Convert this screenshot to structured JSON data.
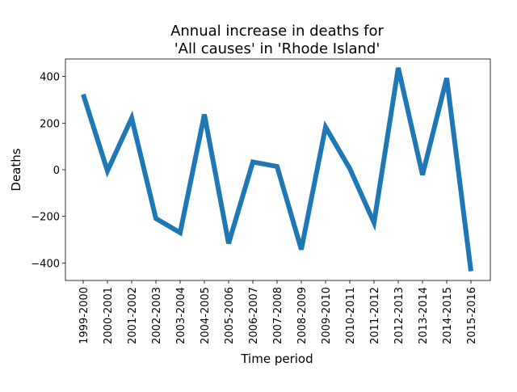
{
  "chart_data": {
    "type": "line",
    "title": "Annual increase in deaths for\n'All causes' in 'Rhode Island'",
    "xlabel": "Time period",
    "ylabel": "Deaths",
    "categories": [
      "1999-2000",
      "2000-2001",
      "2001-2002",
      "2002-2003",
      "2003-2004",
      "2004-2005",
      "2005-2006",
      "2006-2007",
      "2007-2008",
      "2008-2009",
      "2009-2010",
      "2010-2011",
      "2011-2012",
      "2012-2013",
      "2013-2014",
      "2014-2015",
      "2015-2016"
    ],
    "series": [
      {
        "values": [
          323,
          -5,
          222,
          -209,
          -270,
          237,
          -316,
          33,
          14,
          -342,
          183,
          5,
          -227,
          437,
          -22,
          393,
          -435
        ],
        "color": "#1f77b4"
      }
    ],
    "ylim": [
      -475,
      475
    ],
    "yticks": [
      -400,
      -200,
      0,
      200,
      400
    ],
    "ytick_labels": [
      "−400",
      "−200",
      "0",
      "200",
      "400"
    ],
    "grid": false,
    "legend": "none"
  }
}
